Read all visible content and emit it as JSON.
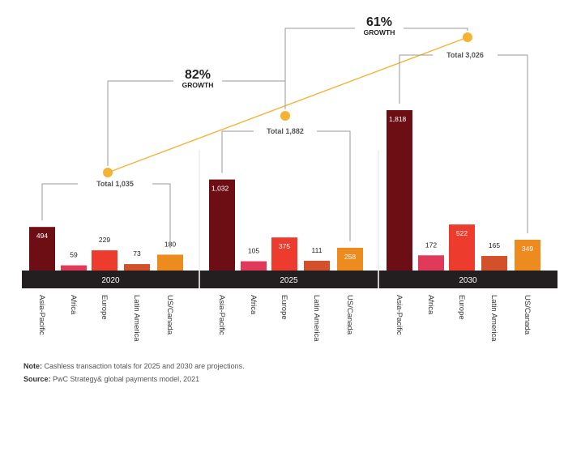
{
  "chart_data": {
    "type": "bar",
    "groups": [
      "2020",
      "2025",
      "2030"
    ],
    "categories": [
      "Asia-Pacific",
      "Africa",
      "Europe",
      "Latin America",
      "US/Canada"
    ],
    "values": [
      [
        494,
        59,
        229,
        73,
        180
      ],
      [
        1032,
        105,
        375,
        111,
        258
      ],
      [
        1818,
        172,
        522,
        165,
        349
      ]
    ],
    "value_labels": [
      [
        "494",
        "59",
        "229",
        "73",
        "180"
      ],
      [
        "1,032",
        "105",
        "375",
        "111",
        "258"
      ],
      [
        "1,818",
        "172",
        "522",
        "165",
        "349"
      ]
    ],
    "totals": [
      1035,
      1882,
      3026
    ],
    "total_labels": [
      "Total 1,035",
      "Total 1,882",
      "Total 3,026"
    ],
    "growth": [
      {
        "value": "82%",
        "label": "GROWTH"
      },
      {
        "value": "61%",
        "label": "GROWTH"
      }
    ],
    "colors": {
      "Asia-Pacific": "#6d0e14",
      "Africa": "#e0395a",
      "Europe": "#ed3b2e",
      "Latin America": "#d2512b",
      "US/Canada": "#ed8b1f",
      "total_line": "#f5b335",
      "axis_band": "#231f20",
      "leader": "#9a9a9a"
    },
    "title": "",
    "xlabel": "",
    "ylabel": "",
    "grid": false,
    "legend": "none"
  },
  "note": {
    "label": "Note:",
    "text": "Cashless transaction totals for 2025 and 2030 are projections."
  },
  "source": {
    "label": "Source:",
    "text": "PwC Strategy& global payments model, 2021"
  }
}
